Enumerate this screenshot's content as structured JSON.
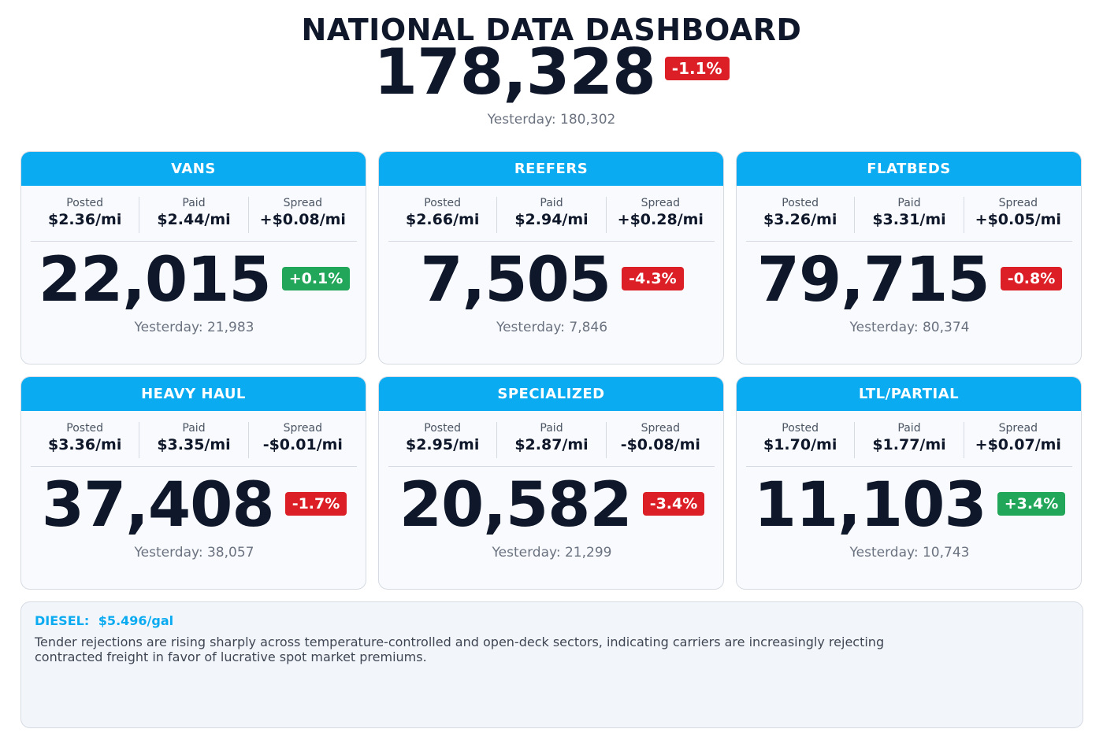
{
  "header": {
    "title": "NATIONAL DATA DASHBOARD",
    "total": "178,328",
    "change": "-1.1%",
    "change_direction": "negative",
    "yesterday": "Yesterday: 180,302"
  },
  "labels": {
    "posted": "Posted",
    "paid": "Paid",
    "spread": "Spread"
  },
  "colors": {
    "accent": "#0aabf0",
    "negative": "#dc1f26",
    "positive": "#22a65a"
  },
  "cards": [
    {
      "title": "VANS",
      "posted": "$2.36/mi",
      "paid": "$2.44/mi",
      "spread": "+$0.08/mi",
      "value": "22,015",
      "change": "+0.1%",
      "direction": "pos",
      "yesterday": "Yesterday: 21,983"
    },
    {
      "title": "REEFERS",
      "posted": "$2.66/mi",
      "paid": "$2.94/mi",
      "spread": "+$0.28/mi",
      "value": "7,505",
      "change": "-4.3%",
      "direction": "neg",
      "yesterday": "Yesterday: 7,846"
    },
    {
      "title": "FLATBEDS",
      "posted": "$3.26/mi",
      "paid": "$3.31/mi",
      "spread": "+$0.05/mi",
      "value": "79,715",
      "change": "-0.8%",
      "direction": "neg",
      "yesterday": "Yesterday: 80,374"
    },
    {
      "title": "HEAVY HAUL",
      "posted": "$3.36/mi",
      "paid": "$3.35/mi",
      "spread": "-$0.01/mi",
      "value": "37,408",
      "change": "-1.7%",
      "direction": "neg",
      "yesterday": "Yesterday: 38,057"
    },
    {
      "title": "SPECIALIZED",
      "posted": "$2.95/mi",
      "paid": "$2.87/mi",
      "spread": "-$0.08/mi",
      "value": "20,582",
      "change": "-3.4%",
      "direction": "neg",
      "yesterday": "Yesterday: 21,299"
    },
    {
      "title": "LTL/PARTIAL",
      "posted": "$1.70/mi",
      "paid": "$1.77/mi",
      "spread": "+$0.07/mi",
      "value": "11,103",
      "change": "+3.4%",
      "direction": "pos",
      "yesterday": "Yesterday: 10,743"
    }
  ],
  "notes": {
    "diesel_label": "DIESEL:",
    "diesel_value": "$5.496/gal",
    "commentary": "Tender rejections are rising sharply across temperature-controlled and open-deck sectors, indicating carriers are increasingly rejecting contracted freight in favor of lucrative spot market premiums."
  }
}
